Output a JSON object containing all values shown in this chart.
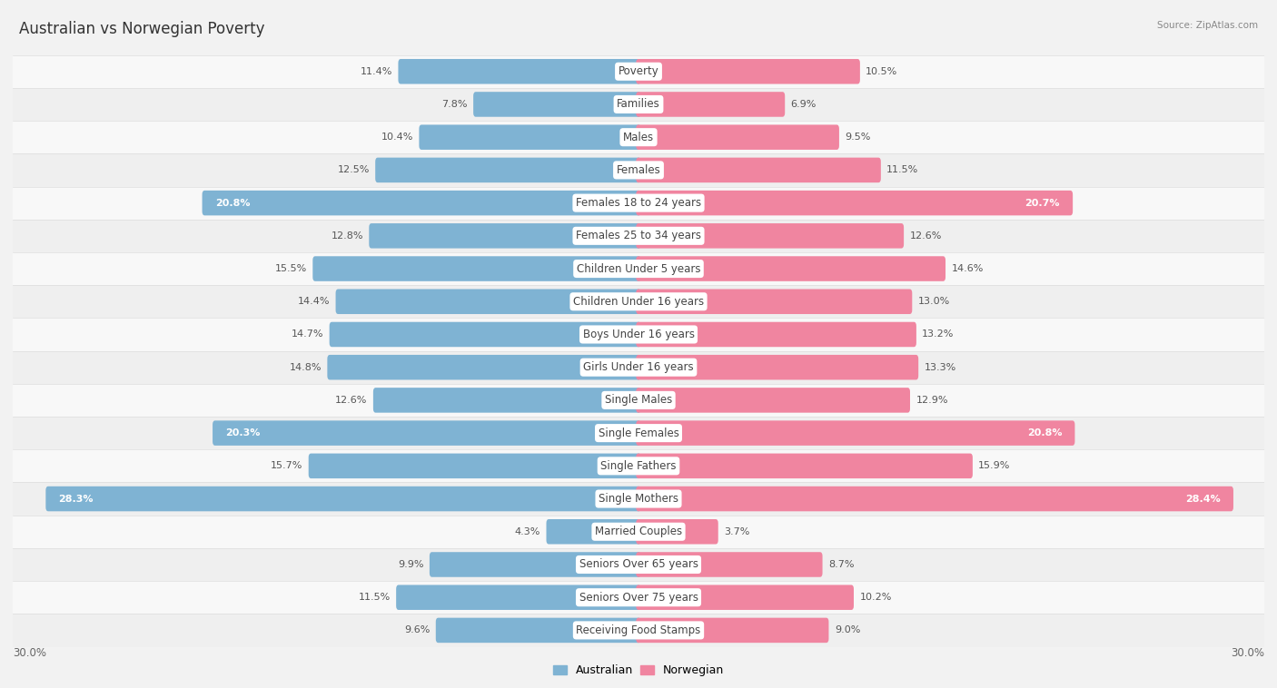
{
  "title": "Australian vs Norwegian Poverty",
  "source": "Source: ZipAtlas.com",
  "categories": [
    "Poverty",
    "Families",
    "Males",
    "Females",
    "Females 18 to 24 years",
    "Females 25 to 34 years",
    "Children Under 5 years",
    "Children Under 16 years",
    "Boys Under 16 years",
    "Girls Under 16 years",
    "Single Males",
    "Single Females",
    "Single Fathers",
    "Single Mothers",
    "Married Couples",
    "Seniors Over 65 years",
    "Seniors Over 75 years",
    "Receiving Food Stamps"
  ],
  "australian": [
    11.4,
    7.8,
    10.4,
    12.5,
    20.8,
    12.8,
    15.5,
    14.4,
    14.7,
    14.8,
    12.6,
    20.3,
    15.7,
    28.3,
    4.3,
    9.9,
    11.5,
    9.6
  ],
  "norwegian": [
    10.5,
    6.9,
    9.5,
    11.5,
    20.7,
    12.6,
    14.6,
    13.0,
    13.2,
    13.3,
    12.9,
    20.8,
    15.9,
    28.4,
    3.7,
    8.7,
    10.2,
    9.0
  ],
  "australian_color": "#7fb3d3",
  "norwegian_color": "#f085a0",
  "bg_color": "#f2f2f2",
  "row_colors": [
    "#f8f8f8",
    "#efefef"
  ],
  "max_val": 30.0,
  "label_fontsize": 8.5,
  "title_fontsize": 12,
  "value_fontsize": 8,
  "bar_height": 0.52,
  "white_label_threshold": 17.0
}
